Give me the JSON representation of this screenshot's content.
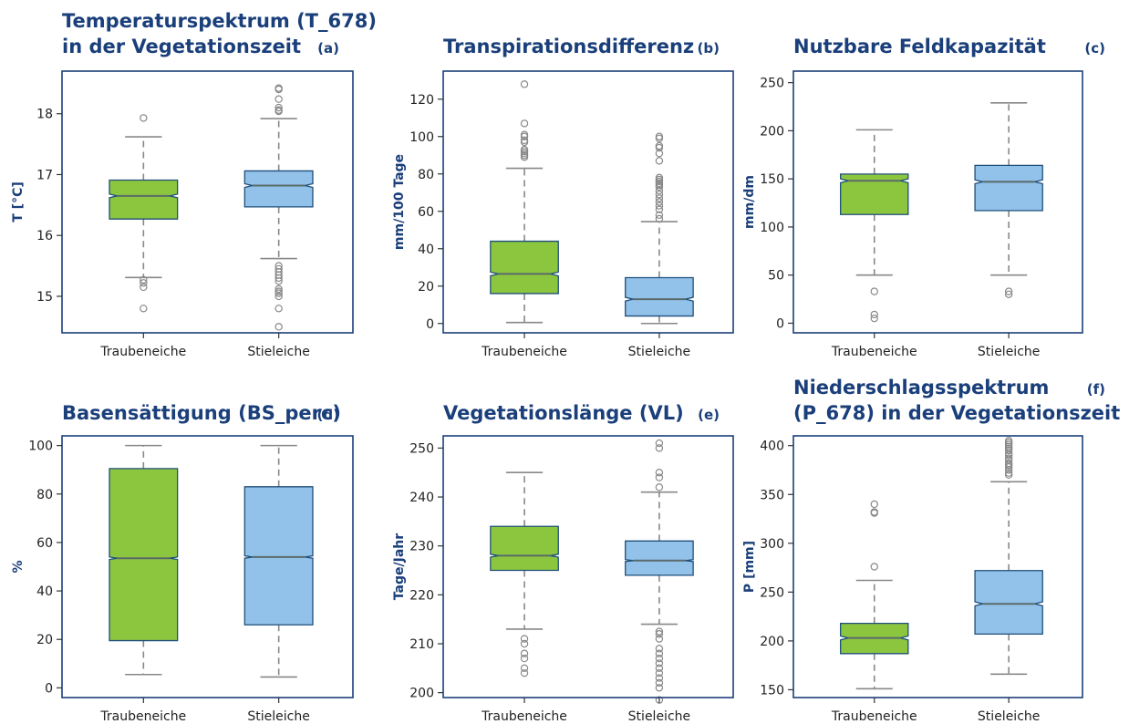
{
  "colors": {
    "traubeneiche": "#8cc63f",
    "stieleiche": "#92c1e9",
    "frame": "#1a3f7a",
    "box_edge": "#1f4f7a",
    "whisker": "#888888",
    "outlier": "#888888",
    "title": "#1a3f7a"
  },
  "chart_data": [
    {
      "type": "box",
      "panel": "(a)",
      "title_lines": [
        "Temperaturspektrum (T_678)",
        "in der Vegetationszeit"
      ],
      "ylabel": "T [°C]",
      "ylim": [
        14.4,
        18.7
      ],
      "yticks": [
        15,
        16,
        17,
        18
      ],
      "categories": [
        "Traubeneiche",
        "Stieleiche"
      ],
      "boxes": [
        {
          "q1": 16.27,
          "median": 16.65,
          "q3": 16.91,
          "notch_lo": 16.62,
          "notch_hi": 16.68,
          "whisker_lo": 15.31,
          "whisker_hi": 17.62,
          "outliers": [
            17.93,
            15.27,
            15.22,
            15.15,
            14.8
          ]
        },
        {
          "q1": 16.47,
          "median": 16.82,
          "q3": 17.06,
          "notch_lo": 16.79,
          "notch_hi": 16.85,
          "whisker_lo": 15.62,
          "whisker_hi": 17.92,
          "outliers": [
            18.42,
            18.4,
            18.24,
            18.1,
            18.06,
            18.04,
            15.5,
            15.45,
            15.4,
            15.35,
            15.3,
            15.25,
            15.12,
            15.08,
            15.05,
            15.0,
            14.8,
            14.5
          ]
        }
      ]
    },
    {
      "type": "box",
      "panel": "(b)",
      "title_lines": [
        "Transpirationsdifferenz"
      ],
      "ylabel": "mm/100 Tage",
      "ylim": [
        -5,
        135
      ],
      "yticks": [
        0,
        20,
        40,
        60,
        80,
        100,
        120
      ],
      "categories": [
        "Traubeneiche",
        "Stieleiche"
      ],
      "boxes": [
        {
          "q1": 16,
          "median": 26.5,
          "q3": 44,
          "notch_lo": 25.5,
          "notch_hi": 27.5,
          "whisker_lo": 0.5,
          "whisker_hi": 83,
          "outliers": [
            128,
            107,
            101,
            100,
            98,
            97,
            93,
            92,
            91,
            90,
            89
          ]
        },
        {
          "q1": 4,
          "median": 13,
          "q3": 24.5,
          "notch_lo": 12,
          "notch_hi": 14,
          "whisker_lo": 0,
          "whisker_hi": 54.5,
          "outliers": [
            100,
            99,
            95,
            94,
            91,
            87,
            78,
            77,
            76,
            75,
            74,
            73,
            71,
            69,
            67,
            65,
            63,
            61,
            58,
            56
          ]
        }
      ]
    },
    {
      "type": "box",
      "panel": "(c)",
      "title_lines": [
        "Nutzbare Feldkapazität"
      ],
      "ylabel": "mm/dm",
      "ylim": [
        -10,
        262
      ],
      "yticks": [
        0,
        50,
        100,
        150,
        200,
        250
      ],
      "categories": [
        "Traubeneiche",
        "Stieleiche"
      ],
      "boxes": [
        {
          "q1": 113,
          "median": 148,
          "q3": 155,
          "notch_lo": 146,
          "notch_hi": 150,
          "whisker_lo": 50,
          "whisker_hi": 201,
          "outliers": [
            33,
            9,
            5
          ]
        },
        {
          "q1": 117,
          "median": 147,
          "q3": 164,
          "notch_lo": 145,
          "notch_hi": 149,
          "whisker_lo": 50,
          "whisker_hi": 229,
          "outliers": [
            33,
            30
          ]
        }
      ]
    },
    {
      "type": "box",
      "panel": "(d)",
      "title_lines": [
        "Basensättigung (BS_perc)"
      ],
      "ylabel": "%",
      "ylim": [
        -4,
        104
      ],
      "yticks": [
        0,
        20,
        40,
        60,
        80,
        100
      ],
      "categories": [
        "Traubeneiche",
        "Stieleiche"
      ],
      "boxes": [
        {
          "q1": 19.5,
          "median": 53.5,
          "q3": 90.5,
          "notch_lo": 53,
          "notch_hi": 54,
          "whisker_lo": 5.5,
          "whisker_hi": 100,
          "outliers": []
        },
        {
          "q1": 26,
          "median": 54,
          "q3": 83,
          "notch_lo": 53.5,
          "notch_hi": 54.5,
          "whisker_lo": 4.5,
          "whisker_hi": 100,
          "outliers": []
        }
      ]
    },
    {
      "type": "box",
      "panel": "(e)",
      "title_lines": [
        "Vegetationslänge (VL)"
      ],
      "ylabel": "Tage/Jahr",
      "ylim": [
        199,
        252.5
      ],
      "yticks": [
        200,
        210,
        220,
        230,
        240,
        250
      ],
      "categories": [
        "Traubeneiche",
        "Stieleiche"
      ],
      "boxes": [
        {
          "q1": 225,
          "median": 228,
          "q3": 234,
          "notch_lo": 227.7,
          "notch_hi": 228.3,
          "whisker_lo": 213,
          "whisker_hi": 245,
          "outliers": [
            211,
            210,
            208,
            207,
            205,
            204
          ]
        },
        {
          "q1": 224,
          "median": 227,
          "q3": 231,
          "notch_lo": 226.8,
          "notch_hi": 227.2,
          "whisker_lo": 214,
          "whisker_hi": 241,
          "outliers": [
            251,
            250,
            245,
            244,
            242,
            212.5,
            212,
            211,
            209,
            208,
            207,
            206,
            205,
            204,
            203,
            202,
            201,
            198.5
          ]
        }
      ]
    },
    {
      "type": "box",
      "panel": "(f)",
      "title_lines": [
        "Niederschlagsspektrum",
        "(P_678) in der Vegetationszeit"
      ],
      "ylabel": "P [mm]",
      "ylim": [
        142,
        410
      ],
      "yticks": [
        150,
        200,
        250,
        300,
        350,
        400
      ],
      "categories": [
        "Traubeneiche",
        "Stieleiche"
      ],
      "boxes": [
        {
          "q1": 187,
          "median": 203,
          "q3": 218,
          "notch_lo": 201,
          "notch_hi": 205,
          "whisker_lo": 151,
          "whisker_hi": 262,
          "outliers": [
            340,
            332,
            331,
            276
          ]
        },
        {
          "q1": 207,
          "median": 238,
          "q3": 272,
          "notch_lo": 236,
          "notch_hi": 240,
          "whisker_lo": 166,
          "whisker_hi": 363,
          "outliers": [
            405,
            403,
            401,
            399,
            397,
            395,
            392,
            390,
            387,
            385,
            382,
            380,
            378,
            375,
            372,
            370
          ]
        }
      ]
    }
  ]
}
